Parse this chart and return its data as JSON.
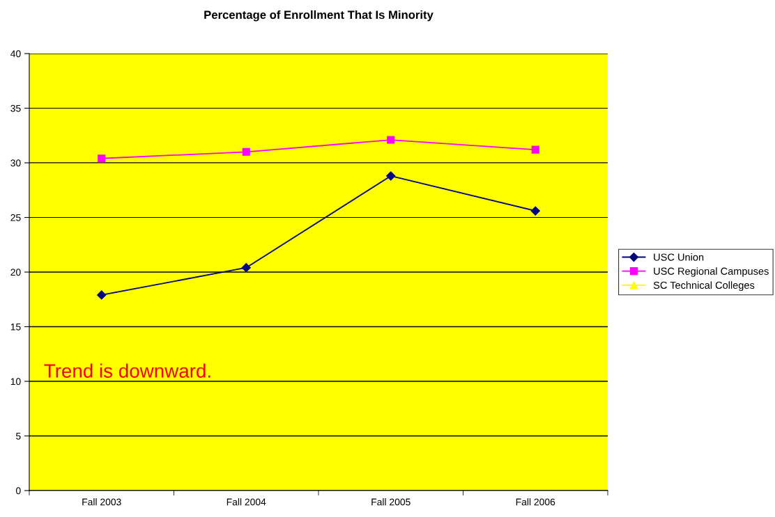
{
  "chart_data": {
    "type": "line",
    "title": "Percentage of Enrollment That Is Minority",
    "categories": [
      "Fall 2003",
      "Fall 2004",
      "Fall 2005",
      "Fall 2006"
    ],
    "series": [
      {
        "name": "USC Union",
        "color": "#000080",
        "marker": "diamond",
        "values": [
          17.9,
          20.4,
          28.8,
          25.6
        ]
      },
      {
        "name": "USC Regional Campuses",
        "color": "#ff00ff",
        "marker": "square",
        "values": [
          30.4,
          31.0,
          32.1,
          31.2
        ]
      },
      {
        "name": "SC Technical Colleges",
        "color": "#ffff00",
        "marker": "triangle",
        "values": [
          null,
          null,
          null,
          null
        ]
      }
    ],
    "ylim": [
      0,
      40
    ],
    "yticks": [
      0,
      5,
      10,
      15,
      20,
      25,
      30,
      35,
      40
    ],
    "grid": "y",
    "legend": "right",
    "annotations": [
      "Trend is downward."
    ]
  }
}
